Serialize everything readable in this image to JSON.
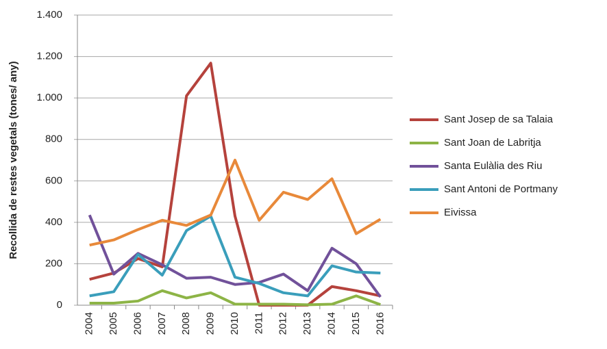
{
  "chart_data": {
    "type": "line",
    "y_label": "Recollida  de restes vegetals (tones/ any)",
    "categories": [
      "2004",
      "2005",
      "2006",
      "2007",
      "2008",
      "2009",
      "2010",
      "2011",
      "2012",
      "2013",
      "2014",
      "2015",
      "2016"
    ],
    "series": [
      {
        "name": "Sant Josep de sa Talaia",
        "color": "#b5423c",
        "values": [
          125,
          155,
          225,
          185,
          1010,
          1168,
          430,
          0,
          0,
          0,
          90,
          70,
          45
        ]
      },
      {
        "name": "Sant Joan de Labritja",
        "color": "#8db446",
        "values": [
          10,
          10,
          20,
          70,
          35,
          60,
          5,
          5,
          5,
          2,
          5,
          45,
          3
        ]
      },
      {
        "name": "Santa Eulàlia des Riu",
        "color": "#71519a",
        "values": [
          435,
          150,
          250,
          195,
          130,
          135,
          100,
          110,
          150,
          70,
          275,
          200,
          40
        ]
      },
      {
        "name": "Sant Antoni de Portmany",
        "color": "#3a9ebb",
        "values": [
          45,
          65,
          245,
          145,
          360,
          430,
          135,
          105,
          60,
          45,
          190,
          160,
          155
        ]
      },
      {
        "name": "Eivissa",
        "color": "#e8893a",
        "values": [
          290,
          315,
          365,
          410,
          385,
          435,
          700,
          410,
          545,
          510,
          610,
          345,
          415
        ]
      }
    ],
    "ylim": [
      0,
      1400
    ],
    "yticks": [
      0,
      200,
      400,
      600,
      800,
      {
        "value": 1000,
        "label": "1.000"
      },
      {
        "value": 1200,
        "label": "1.200"
      },
      {
        "value": 1400,
        "label": "1.400"
      }
    ],
    "grid": true,
    "legend": "right"
  }
}
